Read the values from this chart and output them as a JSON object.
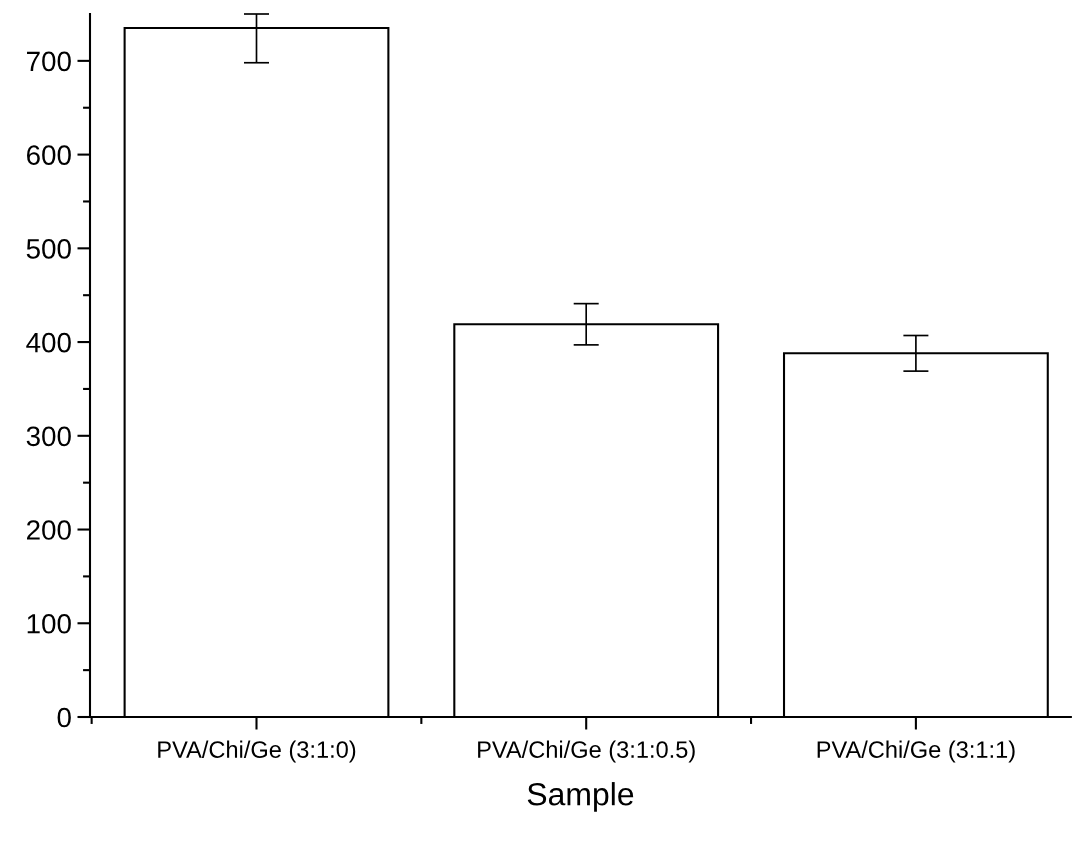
{
  "chart_data": {
    "type": "bar",
    "xlabel": "Sample",
    "categories": [
      "PVA/Chi/Ge (3:1:0)",
      "PVA/Chi/Ge (3:1:0.5)",
      "PVA/Chi/Ge (3:1:1)"
    ],
    "values": [
      735,
      419,
      388
    ],
    "color": "#ffffff",
    "errors": [
      [
        698,
        750
      ],
      [
        397,
        441
      ],
      [
        369,
        407
      ]
    ],
    "ylim": [
      0,
      750
    ],
    "yticks": [
      0,
      {
        "value": 50,
        "label": null
      },
      100,
      {
        "value": 150,
        "label": null
      },
      200,
      {
        "value": 250,
        "label": null
      },
      300,
      {
        "value": 350,
        "label": null
      },
      400,
      {
        "value": 450,
        "label": null
      },
      500,
      {
        "value": 550,
        "label": null
      },
      600,
      {
        "value": 650,
        "label": null
      },
      700
    ],
    "grid": false,
    "legend": false
  }
}
